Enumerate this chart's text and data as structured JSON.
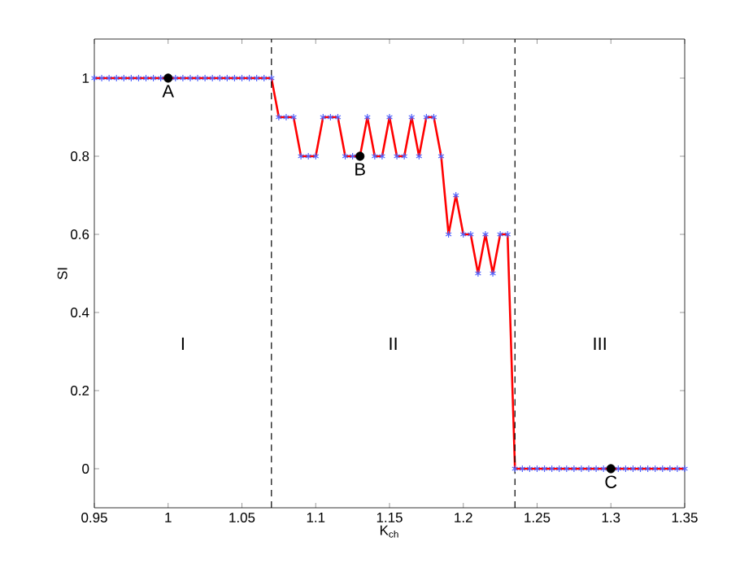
{
  "chart_data": {
    "type": "line",
    "xlabel": "K$_{ch}$",
    "ylabel": "SI",
    "xlim": [
      0.95,
      1.35
    ],
    "ylim": [
      -0.1,
      1.1
    ],
    "xticks": [
      0.95,
      1,
      1.05,
      1.1,
      1.15,
      1.2,
      1.25,
      1.3,
      1.35
    ],
    "yticks": [
      0,
      0.2,
      0.4,
      0.6,
      0.8,
      1
    ],
    "series": [
      {
        "color": "#ff0000",
        "marker": "cross",
        "x": [
          0.95,
          0.955,
          0.96,
          0.965,
          0.97,
          0.975,
          0.98,
          0.985,
          0.99,
          0.995,
          1,
          1.005,
          1.01,
          1.015,
          1.02,
          1.025,
          1.03,
          1.035,
          1.04,
          1.045,
          1.05,
          1.055,
          1.06,
          1.065,
          1.07,
          1.075,
          1.08,
          1.085,
          1.09,
          1.095,
          1.1,
          1.105,
          1.11,
          1.115,
          1.12,
          1.125,
          1.13,
          1.135,
          1.14,
          1.145,
          1.15,
          1.155,
          1.16,
          1.165,
          1.17,
          1.175,
          1.18,
          1.185,
          1.19,
          1.195,
          1.2,
          1.205,
          1.21,
          1.215,
          1.22,
          1.225,
          1.23,
          1.235,
          1.24,
          1.245,
          1.25,
          1.255,
          1.26,
          1.265,
          1.27,
          1.275,
          1.28,
          1.285,
          1.29,
          1.295,
          1.3,
          1.305,
          1.31,
          1.315,
          1.32,
          1.325,
          1.33,
          1.335,
          1.34,
          1.345,
          1.35
        ],
        "values": [
          1,
          1,
          1,
          1,
          1,
          1,
          1,
          1,
          1,
          1,
          1,
          1,
          1,
          1,
          1,
          1,
          1,
          1,
          1,
          1,
          1,
          1,
          1,
          1,
          1,
          0.9,
          0.9,
          0.9,
          0.8,
          0.8,
          0.8,
          0.9,
          0.9,
          0.9,
          0.8,
          0.8,
          0.8,
          0.9,
          0.8,
          0.8,
          0.9,
          0.8,
          0.8,
          0.9,
          0.8,
          0.9,
          0.9,
          0.8,
          0.6,
          0.7,
          0.6,
          0.6,
          0.5,
          0.6,
          0.5,
          0.6,
          0.6,
          0,
          0,
          0,
          0,
          0,
          0,
          0,
          0,
          0,
          0,
          0,
          0,
          0,
          0,
          0,
          0,
          0,
          0,
          0,
          0,
          0,
          0,
          0,
          0
        ]
      },
      {
        "type": "scatter",
        "color": "#000000",
        "marker": "circle",
        "x": [
          1,
          1.13,
          1.3
        ],
        "values": [
          1,
          0.8,
          0
        ]
      }
    ],
    "ref_lines": [
      {
        "axis": "x",
        "value": 1.07,
        "line_style": "dashed",
        "color": "#000000"
      },
      {
        "axis": "x",
        "value": 1.235,
        "line_style": "dashed",
        "color": "#000000"
      }
    ],
    "annotations": [
      {
        "text": "A",
        "x": 1,
        "y": 1
      },
      {
        "text": "B",
        "x": 1.13,
        "y": 0.8
      },
      {
        "text": "C",
        "x": 1.3,
        "y": 0
      },
      "I",
      "II",
      "III"
    ]
  }
}
